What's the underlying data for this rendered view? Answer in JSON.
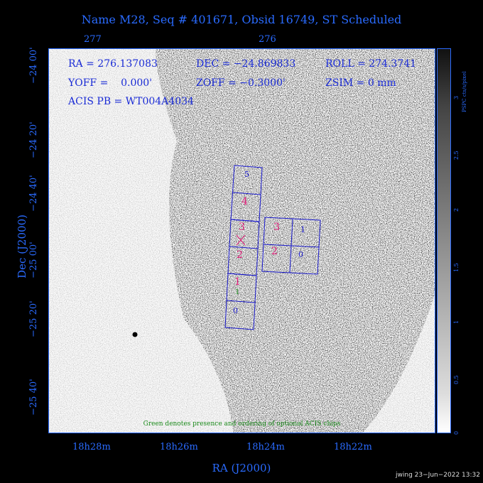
{
  "title": "Name M28, Seq # 401671, Obsid 16749, ST Scheduled",
  "top_ticks": [
    "277",
    "276"
  ],
  "info": {
    "ra": "RA = 276.137083",
    "dec": "DEC = −24.869833",
    "roll": "ROLL = 274.3741",
    "yoff": "YOFF =    0.000'",
    "zoff": "ZOFF = −0.3000'",
    "zsim": "ZSIM = 0 mm",
    "acis_pb": "ACIS PB = WT004A4034"
  },
  "y_ticks": [
    "−24 00'",
    "−24 20'",
    "−24 40'",
    "−25 00'",
    "−25 20'",
    "−25 40'"
  ],
  "x_ticks": [
    "18h28m",
    "18h26m",
    "18h24m",
    "18h22m"
  ],
  "x_axis_title": "RA (J2000)",
  "y_axis_title": "Dec (J2000)",
  "colorbar_ticks": [
    "0",
    "0.5",
    "1",
    "1.5",
    "2",
    "2.5",
    "3"
  ],
  "colorbar_label": "PSPC cts/s/pixel",
  "footnote": "Green denotes presence and ordering of optional ACIS chips",
  "stamp": "jwing 23−Jun−2022 13:32",
  "chips_s": [
    "5",
    "4",
    "3",
    "2",
    "1",
    "0"
  ],
  "chips_i": [
    "3",
    "1",
    "2",
    "0"
  ],
  "optional_chip_label": "1",
  "colors": {
    "axis": "#2a6bff",
    "chip_outline": "#1a1acc",
    "chip_magenta": "#e0207a",
    "chip_blue": "#1a1acc",
    "optional": "#1a8a1a"
  }
}
